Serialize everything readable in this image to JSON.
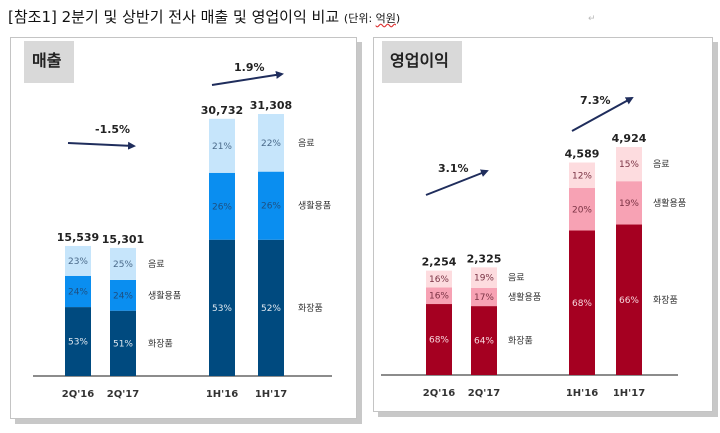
{
  "header": {
    "title": "[참조1]  2분기 및 상반기 전사 매출 및 영업이익 비교",
    "unit_prefix": "(단위: ",
    "unit_word": "억원",
    "unit_suffix": ")"
  },
  "chart_data": [
    {
      "type": "bar",
      "stacked": true,
      "title": "매출",
      "categories": [
        "2Q'16",
        "2Q'17",
        "1H'16",
        "1H'17"
      ],
      "totals": [
        15539,
        15301,
        30732,
        31308
      ],
      "total_labels": [
        "15,539",
        "15,301",
        "30,732",
        "31,308"
      ],
      "series": [
        {
          "name": "화장품",
          "color": "#004a7f",
          "label_color": "#dfe8f0",
          "values": [
            53,
            51,
            53,
            52
          ]
        },
        {
          "name": "생활용품",
          "color": "#0a8ef0",
          "label_color": "#1e4f80",
          "values": [
            24,
            24,
            26,
            26
          ]
        },
        {
          "name": "음료",
          "color": "#c6e5fb",
          "label_color": "#4a6a8a",
          "values": [
            23,
            25,
            21,
            22
          ]
        }
      ],
      "growth": [
        {
          "label": "-1.5%",
          "from": "2Q'16",
          "to": "2Q'17",
          "direction": "flat"
        },
        {
          "label": "1.9%",
          "from": "1H'16",
          "to": "1H'17",
          "direction": "up"
        }
      ],
      "segment_legend_right_of": [
        "2Q'17",
        "1H'17"
      ],
      "arrow_color": "#1f2d5c"
    },
    {
      "type": "bar",
      "stacked": true,
      "title": "영업이익",
      "categories": [
        "2Q'16",
        "2Q'17",
        "1H'16",
        "1H'17"
      ],
      "totals": [
        2254,
        2325,
        4589,
        4924
      ],
      "total_labels": [
        "2,254",
        "2,325",
        "4,589",
        "4,924"
      ],
      "series": [
        {
          "name": "화장품",
          "color": "#a50021",
          "label_color": "#f7d7de",
          "values": [
            68,
            64,
            68,
            66
          ]
        },
        {
          "name": "생활용품",
          "color": "#f7a2b4",
          "label_color": "#7a3344",
          "values": [
            16,
            17,
            20,
            19
          ]
        },
        {
          "name": "음료",
          "color": "#fddcdf",
          "label_color": "#7a3344",
          "values": [
            16,
            19,
            12,
            15
          ]
        }
      ],
      "growth": [
        {
          "label": "3.1%",
          "from": "2Q'16",
          "to": "2Q'17",
          "direction": "up"
        },
        {
          "label": "7.3%",
          "from": "1H'16",
          "to": "1H'17",
          "direction": "up"
        }
      ],
      "segment_legend_right_of": [
        "2Q'17",
        "1H'17"
      ],
      "arrow_color": "#1f2d5c"
    }
  ]
}
